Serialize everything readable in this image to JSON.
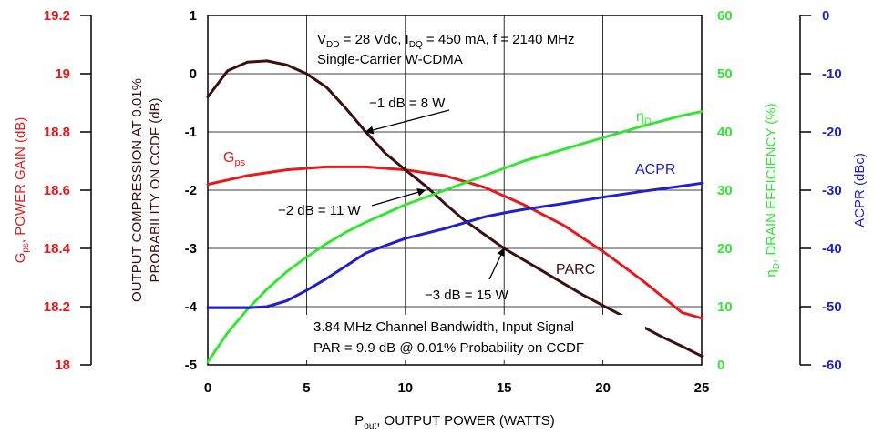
{
  "chart_data": {
    "type": "line",
    "x_label": {
      "main": "P",
      "sub": "out",
      "rest": ", OUTPUT POWER (WATTS)"
    },
    "x_ticks": [
      "0",
      "5",
      "10",
      "15",
      "20",
      "25"
    ],
    "xlim": [
      0,
      25
    ],
    "axes": {
      "gain": {
        "label": {
          "main": "G",
          "sub": "ps",
          "rest": ", POWER GAIN (dB)"
        },
        "ylim": [
          18,
          19.2
        ],
        "ticks": [
          "18",
          "18.2",
          "18.4",
          "18.6",
          "18.8",
          "19",
          "19.2"
        ],
        "color": "#e8191c"
      },
      "parc": {
        "label_line1": "OUTPUT COMPRESSION AT 0.01%",
        "label_line2": "PROBABILITY ON CCDF (dB)",
        "ylim": [
          -5,
          1
        ],
        "ticks": [
          "-5",
          "-4",
          "-3",
          "-2",
          "-1",
          "0",
          "1"
        ],
        "color": "#3c1010"
      },
      "eff": {
        "label": {
          "main": "η",
          "sub": "D",
          "rest": ", DRAIN EFFICIENCY (%)"
        },
        "ylim": [
          0,
          60
        ],
        "ticks": [
          "0",
          "10",
          "20",
          "30",
          "40",
          "50",
          "60"
        ],
        "color": "#33e633"
      },
      "acpr": {
        "label": "ACPR (dBc)",
        "ylim": [
          -60,
          0
        ],
        "ticks": [
          "-60",
          "-50",
          "-40",
          "-30",
          "-20",
          "-10",
          "0"
        ],
        "color": "#1f1fcc"
      }
    },
    "series": [
      {
        "name": "Gps",
        "axis": "gain",
        "color": "#e8191c",
        "x": [
          0,
          2,
          4,
          6,
          8,
          10,
          12,
          14,
          16,
          18,
          20,
          22,
          24,
          25
        ],
        "y": [
          18.62,
          18.65,
          18.67,
          18.68,
          18.68,
          18.67,
          18.65,
          18.61,
          18.55,
          18.48,
          18.39,
          18.29,
          18.18,
          18.16
        ]
      },
      {
        "name": "PARC",
        "axis": "parc",
        "color": "#3c1010",
        "x": [
          0,
          1,
          2,
          3,
          4,
          5,
          6,
          7,
          8,
          9,
          10,
          11,
          12,
          13,
          14,
          15,
          16,
          17,
          18,
          19,
          20,
          21,
          22,
          23,
          24,
          25
        ],
        "y": [
          -0.4,
          0.05,
          0.2,
          0.22,
          0.15,
          0.0,
          -0.23,
          -0.6,
          -1.0,
          -1.37,
          -1.65,
          -1.92,
          -2.23,
          -2.52,
          -2.76,
          -3.0,
          -3.2,
          -3.4,
          -3.6,
          -3.8,
          -3.98,
          -4.16,
          -4.34,
          -4.52,
          -4.68,
          -4.85
        ]
      },
      {
        "name": "ηD",
        "axis": "eff",
        "color": "#33e633",
        "x": [
          0,
          1,
          2,
          3,
          4,
          5,
          6,
          7,
          8,
          9,
          10,
          12,
          14,
          16,
          18,
          20,
          22,
          24,
          25
        ],
        "y": [
          0.5,
          5.5,
          9.5,
          13,
          16,
          18.5,
          20.8,
          22.8,
          24.5,
          26,
          27.5,
          30,
          32.5,
          35,
          37,
          39,
          41,
          42.8,
          43.5
        ]
      },
      {
        "name": "ACPR",
        "axis": "acpr",
        "color": "#1f1fcc",
        "x": [
          0,
          1,
          2,
          3,
          4,
          5,
          6,
          7,
          8,
          9,
          10,
          12,
          14,
          15,
          16,
          18,
          20,
          22,
          24,
          25
        ],
        "y": [
          -50.2,
          -50.2,
          -50.2,
          -50,
          -49,
          -47.2,
          -45.2,
          -43,
          -40.8,
          -39.5,
          -38.3,
          -36.6,
          -34.6,
          -33.9,
          -33.3,
          -32.3,
          -31.2,
          -30.2,
          -29.3,
          -28.8
        ]
      }
    ],
    "series_labels": [
      {
        "key": "gps",
        "main": "G",
        "sub": "ps",
        "color": "#e8191c"
      },
      {
        "key": "etad",
        "main": "η",
        "sub": "D",
        "color": "#33e633"
      },
      {
        "key": "acpr",
        "main": "ACPR",
        "sub": "",
        "color": "#1f1fcc"
      },
      {
        "key": "parc",
        "main": "PARC",
        "sub": "",
        "color": "#3c1010"
      }
    ],
    "annotations": {
      "cond_line1": {
        "p1": "V",
        "s1": "DD",
        "p2": " = 28 Vdc, I",
        "s2": "DQ",
        "p3": " = 450 mA, f = 2140 MHz"
      },
      "cond_line2": "Single-Carrier W-CDMA",
      "box_line1": "3.84 MHz Channel Bandwidth, Input Signal",
      "box_line2": "PAR = 9.9 dB @ 0.01% Probability on CCDF",
      "compression_points": [
        {
          "label": "−1 dB = 8 W",
          "x": 8,
          "y": -1
        },
        {
          "label": "−2 dB = 11 W",
          "x": 11,
          "y": -2
        },
        {
          "label": "−3 dB = 15 W",
          "x": 15,
          "y": -3
        }
      ]
    },
    "grid": true
  }
}
